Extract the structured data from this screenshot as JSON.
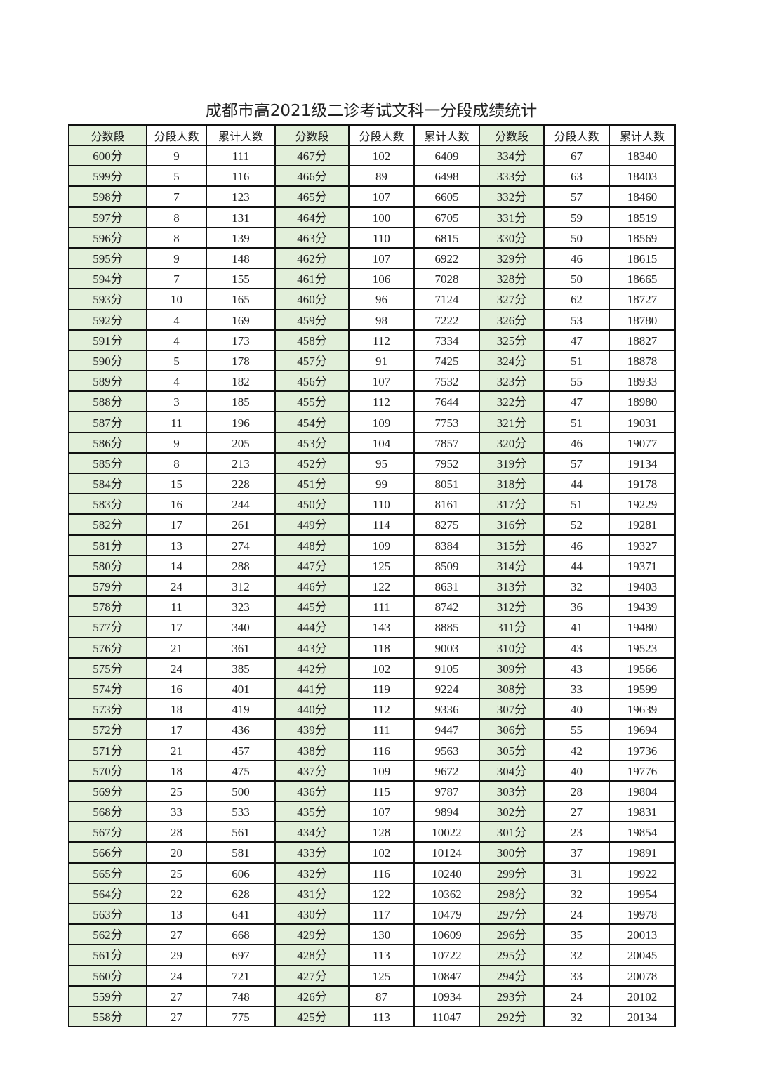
{
  "title": "成都市高2021级二诊考试文科一分段成绩统计",
  "colors": {
    "score_column_bg": "#e2efda",
    "border": "#111111"
  },
  "table": {
    "headers": [
      "分数段",
      "分段人数",
      "累计人数",
      "分数段",
      "分段人数",
      "累计人数",
      "分数段",
      "分段人数",
      "累计人数"
    ],
    "rows": [
      [
        "600分",
        "9",
        "111",
        "467分",
        "102",
        "6409",
        "334分",
        "67",
        "18340"
      ],
      [
        "599分",
        "5",
        "116",
        "466分",
        "89",
        "6498",
        "333分",
        "63",
        "18403"
      ],
      [
        "598分",
        "7",
        "123",
        "465分",
        "107",
        "6605",
        "332分",
        "57",
        "18460"
      ],
      [
        "597分",
        "8",
        "131",
        "464分",
        "100",
        "6705",
        "331分",
        "59",
        "18519"
      ],
      [
        "596分",
        "8",
        "139",
        "463分",
        "110",
        "6815",
        "330分",
        "50",
        "18569"
      ],
      [
        "595分",
        "9",
        "148",
        "462分",
        "107",
        "6922",
        "329分",
        "46",
        "18615"
      ],
      [
        "594分",
        "7",
        "155",
        "461分",
        "106",
        "7028",
        "328分",
        "50",
        "18665"
      ],
      [
        "593分",
        "10",
        "165",
        "460分",
        "96",
        "7124",
        "327分",
        "62",
        "18727"
      ],
      [
        "592分",
        "4",
        "169",
        "459分",
        "98",
        "7222",
        "326分",
        "53",
        "18780"
      ],
      [
        "591分",
        "4",
        "173",
        "458分",
        "112",
        "7334",
        "325分",
        "47",
        "18827"
      ],
      [
        "590分",
        "5",
        "178",
        "457分",
        "91",
        "7425",
        "324分",
        "51",
        "18878"
      ],
      [
        "589分",
        "4",
        "182",
        "456分",
        "107",
        "7532",
        "323分",
        "55",
        "18933"
      ],
      [
        "588分",
        "3",
        "185",
        "455分",
        "112",
        "7644",
        "322分",
        "47",
        "18980"
      ],
      [
        "587分",
        "11",
        "196",
        "454分",
        "109",
        "7753",
        "321分",
        "51",
        "19031"
      ],
      [
        "586分",
        "9",
        "205",
        "453分",
        "104",
        "7857",
        "320分",
        "46",
        "19077"
      ],
      [
        "585分",
        "8",
        "213",
        "452分",
        "95",
        "7952",
        "319分",
        "57",
        "19134"
      ],
      [
        "584分",
        "15",
        "228",
        "451分",
        "99",
        "8051",
        "318分",
        "44",
        "19178"
      ],
      [
        "583分",
        "16",
        "244",
        "450分",
        "110",
        "8161",
        "317分",
        "51",
        "19229"
      ],
      [
        "582分",
        "17",
        "261",
        "449分",
        "114",
        "8275",
        "316分",
        "52",
        "19281"
      ],
      [
        "581分",
        "13",
        "274",
        "448分",
        "109",
        "8384",
        "315分",
        "46",
        "19327"
      ],
      [
        "580分",
        "14",
        "288",
        "447分",
        "125",
        "8509",
        "314分",
        "44",
        "19371"
      ],
      [
        "579分",
        "24",
        "312",
        "446分",
        "122",
        "8631",
        "313分",
        "32",
        "19403"
      ],
      [
        "578分",
        "11",
        "323",
        "445分",
        "111",
        "8742",
        "312分",
        "36",
        "19439"
      ],
      [
        "577分",
        "17",
        "340",
        "444分",
        "143",
        "8885",
        "311分",
        "41",
        "19480"
      ],
      [
        "576分",
        "21",
        "361",
        "443分",
        "118",
        "9003",
        "310分",
        "43",
        "19523"
      ],
      [
        "575分",
        "24",
        "385",
        "442分",
        "102",
        "9105",
        "309分",
        "43",
        "19566"
      ],
      [
        "574分",
        "16",
        "401",
        "441分",
        "119",
        "9224",
        "308分",
        "33",
        "19599"
      ],
      [
        "573分",
        "18",
        "419",
        "440分",
        "112",
        "9336",
        "307分",
        "40",
        "19639"
      ],
      [
        "572分",
        "17",
        "436",
        "439分",
        "111",
        "9447",
        "306分",
        "55",
        "19694"
      ],
      [
        "571分",
        "21",
        "457",
        "438分",
        "116",
        "9563",
        "305分",
        "42",
        "19736"
      ],
      [
        "570分",
        "18",
        "475",
        "437分",
        "109",
        "9672",
        "304分",
        "40",
        "19776"
      ],
      [
        "569分",
        "25",
        "500",
        "436分",
        "115",
        "9787",
        "303分",
        "28",
        "19804"
      ],
      [
        "568分",
        "33",
        "533",
        "435分",
        "107",
        "9894",
        "302分",
        "27",
        "19831"
      ],
      [
        "567分",
        "28",
        "561",
        "434分",
        "128",
        "10022",
        "301分",
        "23",
        "19854"
      ],
      [
        "566分",
        "20",
        "581",
        "433分",
        "102",
        "10124",
        "300分",
        "37",
        "19891"
      ],
      [
        "565分",
        "25",
        "606",
        "432分",
        "116",
        "10240",
        "299分",
        "31",
        "19922"
      ],
      [
        "564分",
        "22",
        "628",
        "431分",
        "122",
        "10362",
        "298分",
        "32",
        "19954"
      ],
      [
        "563分",
        "13",
        "641",
        "430分",
        "117",
        "10479",
        "297分",
        "24",
        "19978"
      ],
      [
        "562分",
        "27",
        "668",
        "429分",
        "130",
        "10609",
        "296分",
        "35",
        "20013"
      ],
      [
        "561分",
        "29",
        "697",
        "428分",
        "113",
        "10722",
        "295分",
        "32",
        "20045"
      ],
      [
        "560分",
        "24",
        "721",
        "427分",
        "125",
        "10847",
        "294分",
        "33",
        "20078"
      ],
      [
        "559分",
        "27",
        "748",
        "426分",
        "87",
        "10934",
        "293分",
        "24",
        "20102"
      ],
      [
        "558分",
        "27",
        "775",
        "425分",
        "113",
        "11047",
        "292分",
        "32",
        "20134"
      ]
    ]
  }
}
